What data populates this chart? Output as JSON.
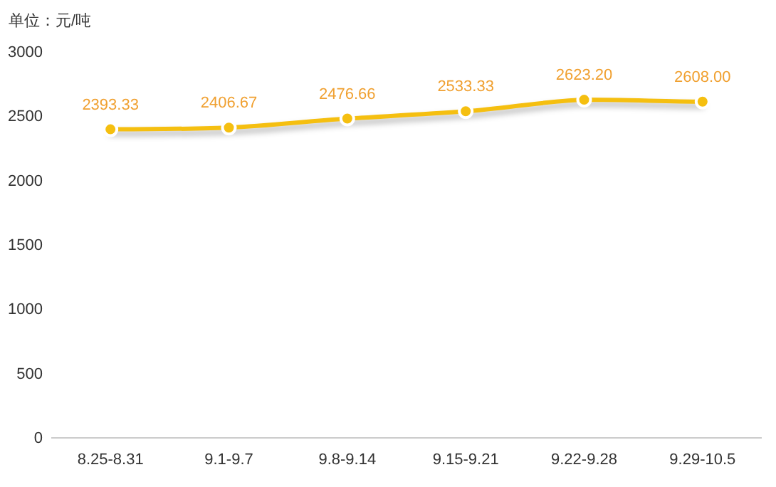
{
  "chart_data": {
    "type": "line",
    "ylabel": "单位：元/吨",
    "categories": [
      "8.25-8.31",
      "9.1-9.7",
      "9.8-9.14",
      "9.15-9.21",
      "9.22-9.28",
      "9.29-10.5"
    ],
    "series": [
      {
        "color": "#f5bf10",
        "values": [
          2393.33,
          2406.67,
          2476.66,
          2533.33,
          2623.2,
          2608.0
        ],
        "value_labels": [
          "2393.33",
          "2406.67",
          "2476.66",
          "2533.33",
          "2623.20",
          "2608.00"
        ]
      }
    ],
    "ylim": [
      0,
      3000
    ],
    "yticks": [
      0,
      500,
      1000,
      1500,
      2000,
      2500,
      3000
    ],
    "marker": "circle",
    "line_style": "solid"
  }
}
